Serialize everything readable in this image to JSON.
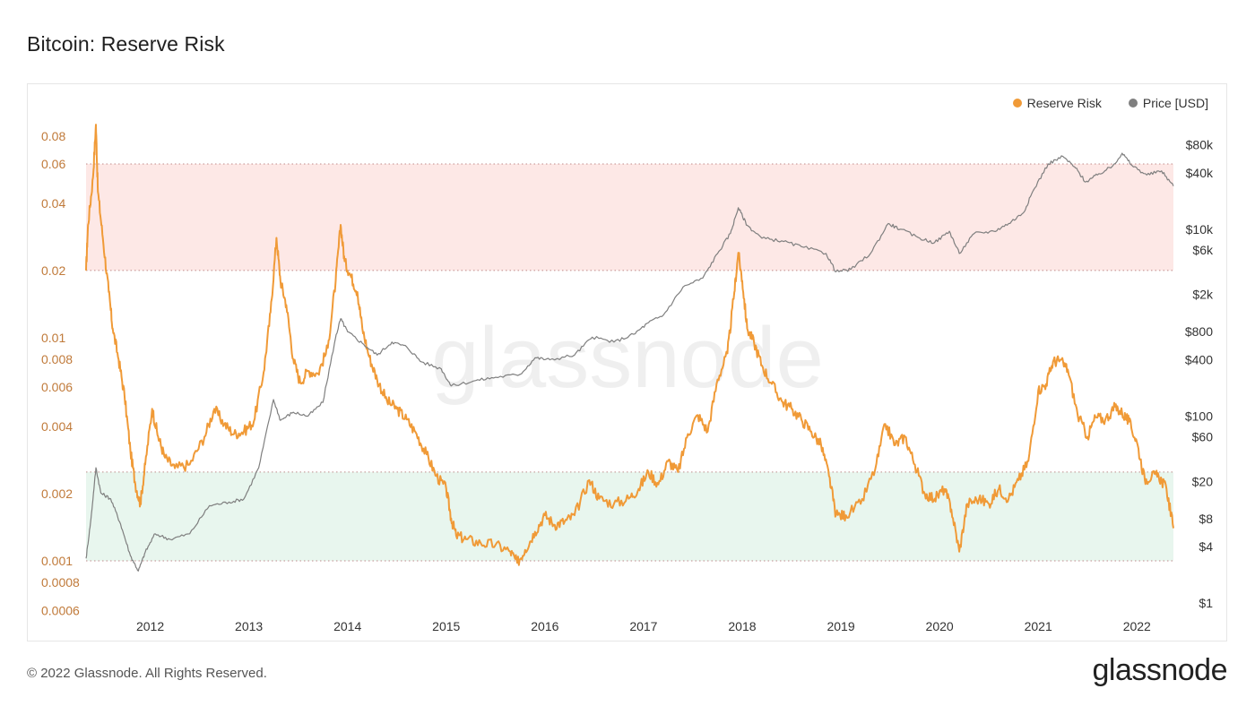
{
  "page": {
    "title": "Bitcoin: Reserve Risk",
    "copyright": "© 2022 Glassnode. All Rights Reserved.",
    "logo": "glassnode",
    "watermark": "glassnode"
  },
  "legend": [
    {
      "label": "Reserve Risk",
      "color": "#f09a37"
    },
    {
      "label": "Price [USD]",
      "color": "#7f7f7f"
    }
  ],
  "chart_data": {
    "type": "line",
    "title": "Bitcoin: Reserve Risk",
    "y_left": {
      "scale": "log",
      "range": [
        0.0006,
        0.08
      ],
      "ticks": [
        0.08,
        0.06,
        0.04,
        0.02,
        0.01,
        0.008,
        0.006,
        0.004,
        0.002,
        0.001,
        0.0008,
        0.0006
      ],
      "tick_labels": [
        "0.08",
        "0.06",
        "0.04",
        "0.02",
        "0.01",
        "0.008",
        "0.006",
        "0.004",
        "0.002",
        "0.001",
        "0.0008",
        "0.0006"
      ]
    },
    "y_right": {
      "scale": "log",
      "ticks": [
        80000,
        40000,
        10000,
        6000,
        2000,
        800,
        400,
        100,
        60,
        20,
        8,
        4,
        1
      ],
      "tick_labels": [
        "$80k",
        "$40k",
        "$10k",
        "$6k",
        "$2k",
        "$800",
        "$400",
        "$100",
        "$60",
        "$20",
        "$8",
        "$4",
        "$1"
      ]
    },
    "x_axis": {
      "range": [
        2011.35,
        2022.37
      ],
      "ticks": [
        2012,
        2013,
        2014,
        2015,
        2016,
        2017,
        2018,
        2019,
        2020,
        2021,
        2022
      ],
      "tick_labels": [
        "2012",
        "2013",
        "2014",
        "2015",
        "2016",
        "2017",
        "2018",
        "2019",
        "2020",
        "2021",
        "2022"
      ]
    },
    "bands": [
      {
        "zone": "high",
        "from": 0.02,
        "to": 0.06,
        "color": "#fde8e6"
      },
      {
        "zone": "low",
        "from": 0.001,
        "to": 0.0025,
        "color": "#e8f6ee"
      }
    ],
    "series": [
      {
        "name": "Reserve Risk",
        "axis": "left",
        "color": "#f09a37",
        "points": [
          [
            2011.35,
            0.02
          ],
          [
            2011.37,
            0.032
          ],
          [
            2011.42,
            0.052
          ],
          [
            2011.45,
            0.09
          ],
          [
            2011.47,
            0.045
          ],
          [
            2011.52,
            0.028
          ],
          [
            2011.58,
            0.016
          ],
          [
            2011.62,
            0.011
          ],
          [
            2011.68,
            0.008
          ],
          [
            2011.74,
            0.0055
          ],
          [
            2011.8,
            0.0031
          ],
          [
            2011.85,
            0.0022
          ],
          [
            2011.9,
            0.0018
          ],
          [
            2011.95,
            0.0027
          ],
          [
            2012.02,
            0.0048
          ],
          [
            2012.08,
            0.0036
          ],
          [
            2012.15,
            0.0029
          ],
          [
            2012.25,
            0.0026
          ],
          [
            2012.4,
            0.0027
          ],
          [
            2012.55,
            0.0036
          ],
          [
            2012.65,
            0.0048
          ],
          [
            2012.75,
            0.0041
          ],
          [
            2012.85,
            0.0037
          ],
          [
            2012.95,
            0.0038
          ],
          [
            2013.05,
            0.0042
          ],
          [
            2013.15,
            0.007
          ],
          [
            2013.22,
            0.013
          ],
          [
            2013.28,
            0.028
          ],
          [
            2013.32,
            0.018
          ],
          [
            2013.38,
            0.014
          ],
          [
            2013.45,
            0.008
          ],
          [
            2013.52,
            0.0063
          ],
          [
            2013.6,
            0.0071
          ],
          [
            2013.7,
            0.0069
          ],
          [
            2013.8,
            0.009
          ],
          [
            2013.88,
            0.018
          ],
          [
            2013.93,
            0.032
          ],
          [
            2013.97,
            0.022
          ],
          [
            2014.03,
            0.019
          ],
          [
            2014.1,
            0.016
          ],
          [
            2014.15,
            0.011
          ],
          [
            2014.22,
            0.0082
          ],
          [
            2014.3,
            0.0065
          ],
          [
            2014.4,
            0.0052
          ],
          [
            2014.5,
            0.0048
          ],
          [
            2014.6,
            0.0043
          ],
          [
            2014.7,
            0.0037
          ],
          [
            2014.8,
            0.003
          ],
          [
            2014.9,
            0.0024
          ],
          [
            2015.0,
            0.0021
          ],
          [
            2015.05,
            0.00155
          ],
          [
            2015.1,
            0.0013
          ],
          [
            2015.2,
            0.00125
          ],
          [
            2015.35,
            0.0012
          ],
          [
            2015.5,
            0.00118
          ],
          [
            2015.65,
            0.0011
          ],
          [
            2015.72,
            0.00098
          ],
          [
            2015.8,
            0.00112
          ],
          [
            2015.9,
            0.00135
          ],
          [
            2016.0,
            0.0016
          ],
          [
            2016.1,
            0.00145
          ],
          [
            2016.2,
            0.0015
          ],
          [
            2016.3,
            0.0016
          ],
          [
            2016.45,
            0.0023
          ],
          [
            2016.55,
            0.0019
          ],
          [
            2016.7,
            0.0018
          ],
          [
            2016.85,
            0.0019
          ],
          [
            2016.95,
            0.0021
          ],
          [
            2017.05,
            0.0025
          ],
          [
            2017.15,
            0.0022
          ],
          [
            2017.25,
            0.0028
          ],
          [
            2017.35,
            0.0025
          ],
          [
            2017.45,
            0.0037
          ],
          [
            2017.55,
            0.0045
          ],
          [
            2017.65,
            0.0038
          ],
          [
            2017.75,
            0.0065
          ],
          [
            2017.85,
            0.0085
          ],
          [
            2017.92,
            0.016
          ],
          [
            2017.96,
            0.024
          ],
          [
            2018.0,
            0.018
          ],
          [
            2018.05,
            0.011
          ],
          [
            2018.12,
            0.0095
          ],
          [
            2018.2,
            0.0075
          ],
          [
            2018.3,
            0.0062
          ],
          [
            2018.4,
            0.0052
          ],
          [
            2018.5,
            0.0048
          ],
          [
            2018.6,
            0.0043
          ],
          [
            2018.7,
            0.0038
          ],
          [
            2018.8,
            0.0033
          ],
          [
            2018.88,
            0.0024
          ],
          [
            2018.95,
            0.0016
          ],
          [
            2019.05,
            0.0016
          ],
          [
            2019.2,
            0.0018
          ],
          [
            2019.35,
            0.0026
          ],
          [
            2019.45,
            0.0041
          ],
          [
            2019.55,
            0.0033
          ],
          [
            2019.65,
            0.0036
          ],
          [
            2019.75,
            0.0027
          ],
          [
            2019.85,
            0.002
          ],
          [
            2019.95,
            0.0019
          ],
          [
            2020.05,
            0.0021
          ],
          [
            2020.12,
            0.0017
          ],
          [
            2020.2,
            0.0011
          ],
          [
            2020.28,
            0.0018
          ],
          [
            2020.4,
            0.0019
          ],
          [
            2020.5,
            0.0018
          ],
          [
            2020.6,
            0.0021
          ],
          [
            2020.7,
            0.0019
          ],
          [
            2020.8,
            0.0023
          ],
          [
            2020.9,
            0.0028
          ],
          [
            2021.0,
            0.0058
          ],
          [
            2021.08,
            0.0062
          ],
          [
            2021.15,
            0.0078
          ],
          [
            2021.22,
            0.0079
          ],
          [
            2021.3,
            0.0072
          ],
          [
            2021.4,
            0.0045
          ],
          [
            2021.5,
            0.0036
          ],
          [
            2021.58,
            0.0044
          ],
          [
            2021.68,
            0.0043
          ],
          [
            2021.78,
            0.0049
          ],
          [
            2021.85,
            0.0046
          ],
          [
            2021.92,
            0.0042
          ],
          [
            2022.0,
            0.0034
          ],
          [
            2022.08,
            0.0023
          ],
          [
            2022.15,
            0.0024
          ],
          [
            2022.22,
            0.0024
          ],
          [
            2022.3,
            0.0021
          ],
          [
            2022.37,
            0.0014
          ]
        ]
      },
      {
        "name": "Price [USD]",
        "axis": "right",
        "color": "#7f7f7f",
        "points": [
          [
            2011.35,
            3
          ],
          [
            2011.4,
            8
          ],
          [
            2011.45,
            28
          ],
          [
            2011.5,
            15
          ],
          [
            2011.6,
            13
          ],
          [
            2011.7,
            7
          ],
          [
            2011.8,
            3.2
          ],
          [
            2011.88,
            2.2
          ],
          [
            2011.95,
            3.5
          ],
          [
            2012.05,
            5.5
          ],
          [
            2012.2,
            4.8
          ],
          [
            2012.4,
            5.5
          ],
          [
            2012.6,
            11
          ],
          [
            2012.8,
            12
          ],
          [
            2012.95,
            13
          ],
          [
            2013.1,
            28
          ],
          [
            2013.25,
            150
          ],
          [
            2013.32,
            90
          ],
          [
            2013.45,
            110
          ],
          [
            2013.6,
            100
          ],
          [
            2013.75,
            140
          ],
          [
            2013.88,
            700
          ],
          [
            2013.93,
            1100
          ],
          [
            2014.0,
            800
          ],
          [
            2014.15,
            600
          ],
          [
            2014.3,
            450
          ],
          [
            2014.45,
            620
          ],
          [
            2014.6,
            550
          ],
          [
            2014.75,
            380
          ],
          [
            2014.95,
            320
          ],
          [
            2015.05,
            210
          ],
          [
            2015.3,
            240
          ],
          [
            2015.5,
            260
          ],
          [
            2015.75,
            280
          ],
          [
            2015.9,
            420
          ],
          [
            2016.05,
            400
          ],
          [
            2016.3,
            450
          ],
          [
            2016.48,
            700
          ],
          [
            2016.7,
            620
          ],
          [
            2016.9,
            750
          ],
          [
            2017.05,
            1000
          ],
          [
            2017.2,
            1200
          ],
          [
            2017.4,
            2400
          ],
          [
            2017.6,
            3000
          ],
          [
            2017.75,
            5500
          ],
          [
            2017.88,
            9000
          ],
          [
            2017.96,
            17000
          ],
          [
            2018.05,
            11000
          ],
          [
            2018.2,
            8000
          ],
          [
            2018.4,
            7500
          ],
          [
            2018.6,
            6500
          ],
          [
            2018.85,
            5500
          ],
          [
            2018.95,
            3500
          ],
          [
            2019.1,
            3700
          ],
          [
            2019.3,
            5500
          ],
          [
            2019.48,
            11500
          ],
          [
            2019.6,
            10000
          ],
          [
            2019.8,
            8000
          ],
          [
            2019.95,
            7200
          ],
          [
            2020.1,
            9500
          ],
          [
            2020.2,
            5500
          ],
          [
            2020.35,
            9000
          ],
          [
            2020.55,
            9500
          ],
          [
            2020.7,
            11500
          ],
          [
            2020.85,
            15000
          ],
          [
            2020.95,
            26000
          ],
          [
            2021.1,
            50000
          ],
          [
            2021.25,
            60000
          ],
          [
            2021.38,
            45000
          ],
          [
            2021.48,
            32000
          ],
          [
            2021.6,
            38000
          ],
          [
            2021.75,
            47000
          ],
          [
            2021.85,
            65000
          ],
          [
            2021.95,
            48000
          ],
          [
            2022.1,
            38000
          ],
          [
            2022.25,
            42000
          ],
          [
            2022.37,
            29000
          ]
        ]
      }
    ]
  }
}
